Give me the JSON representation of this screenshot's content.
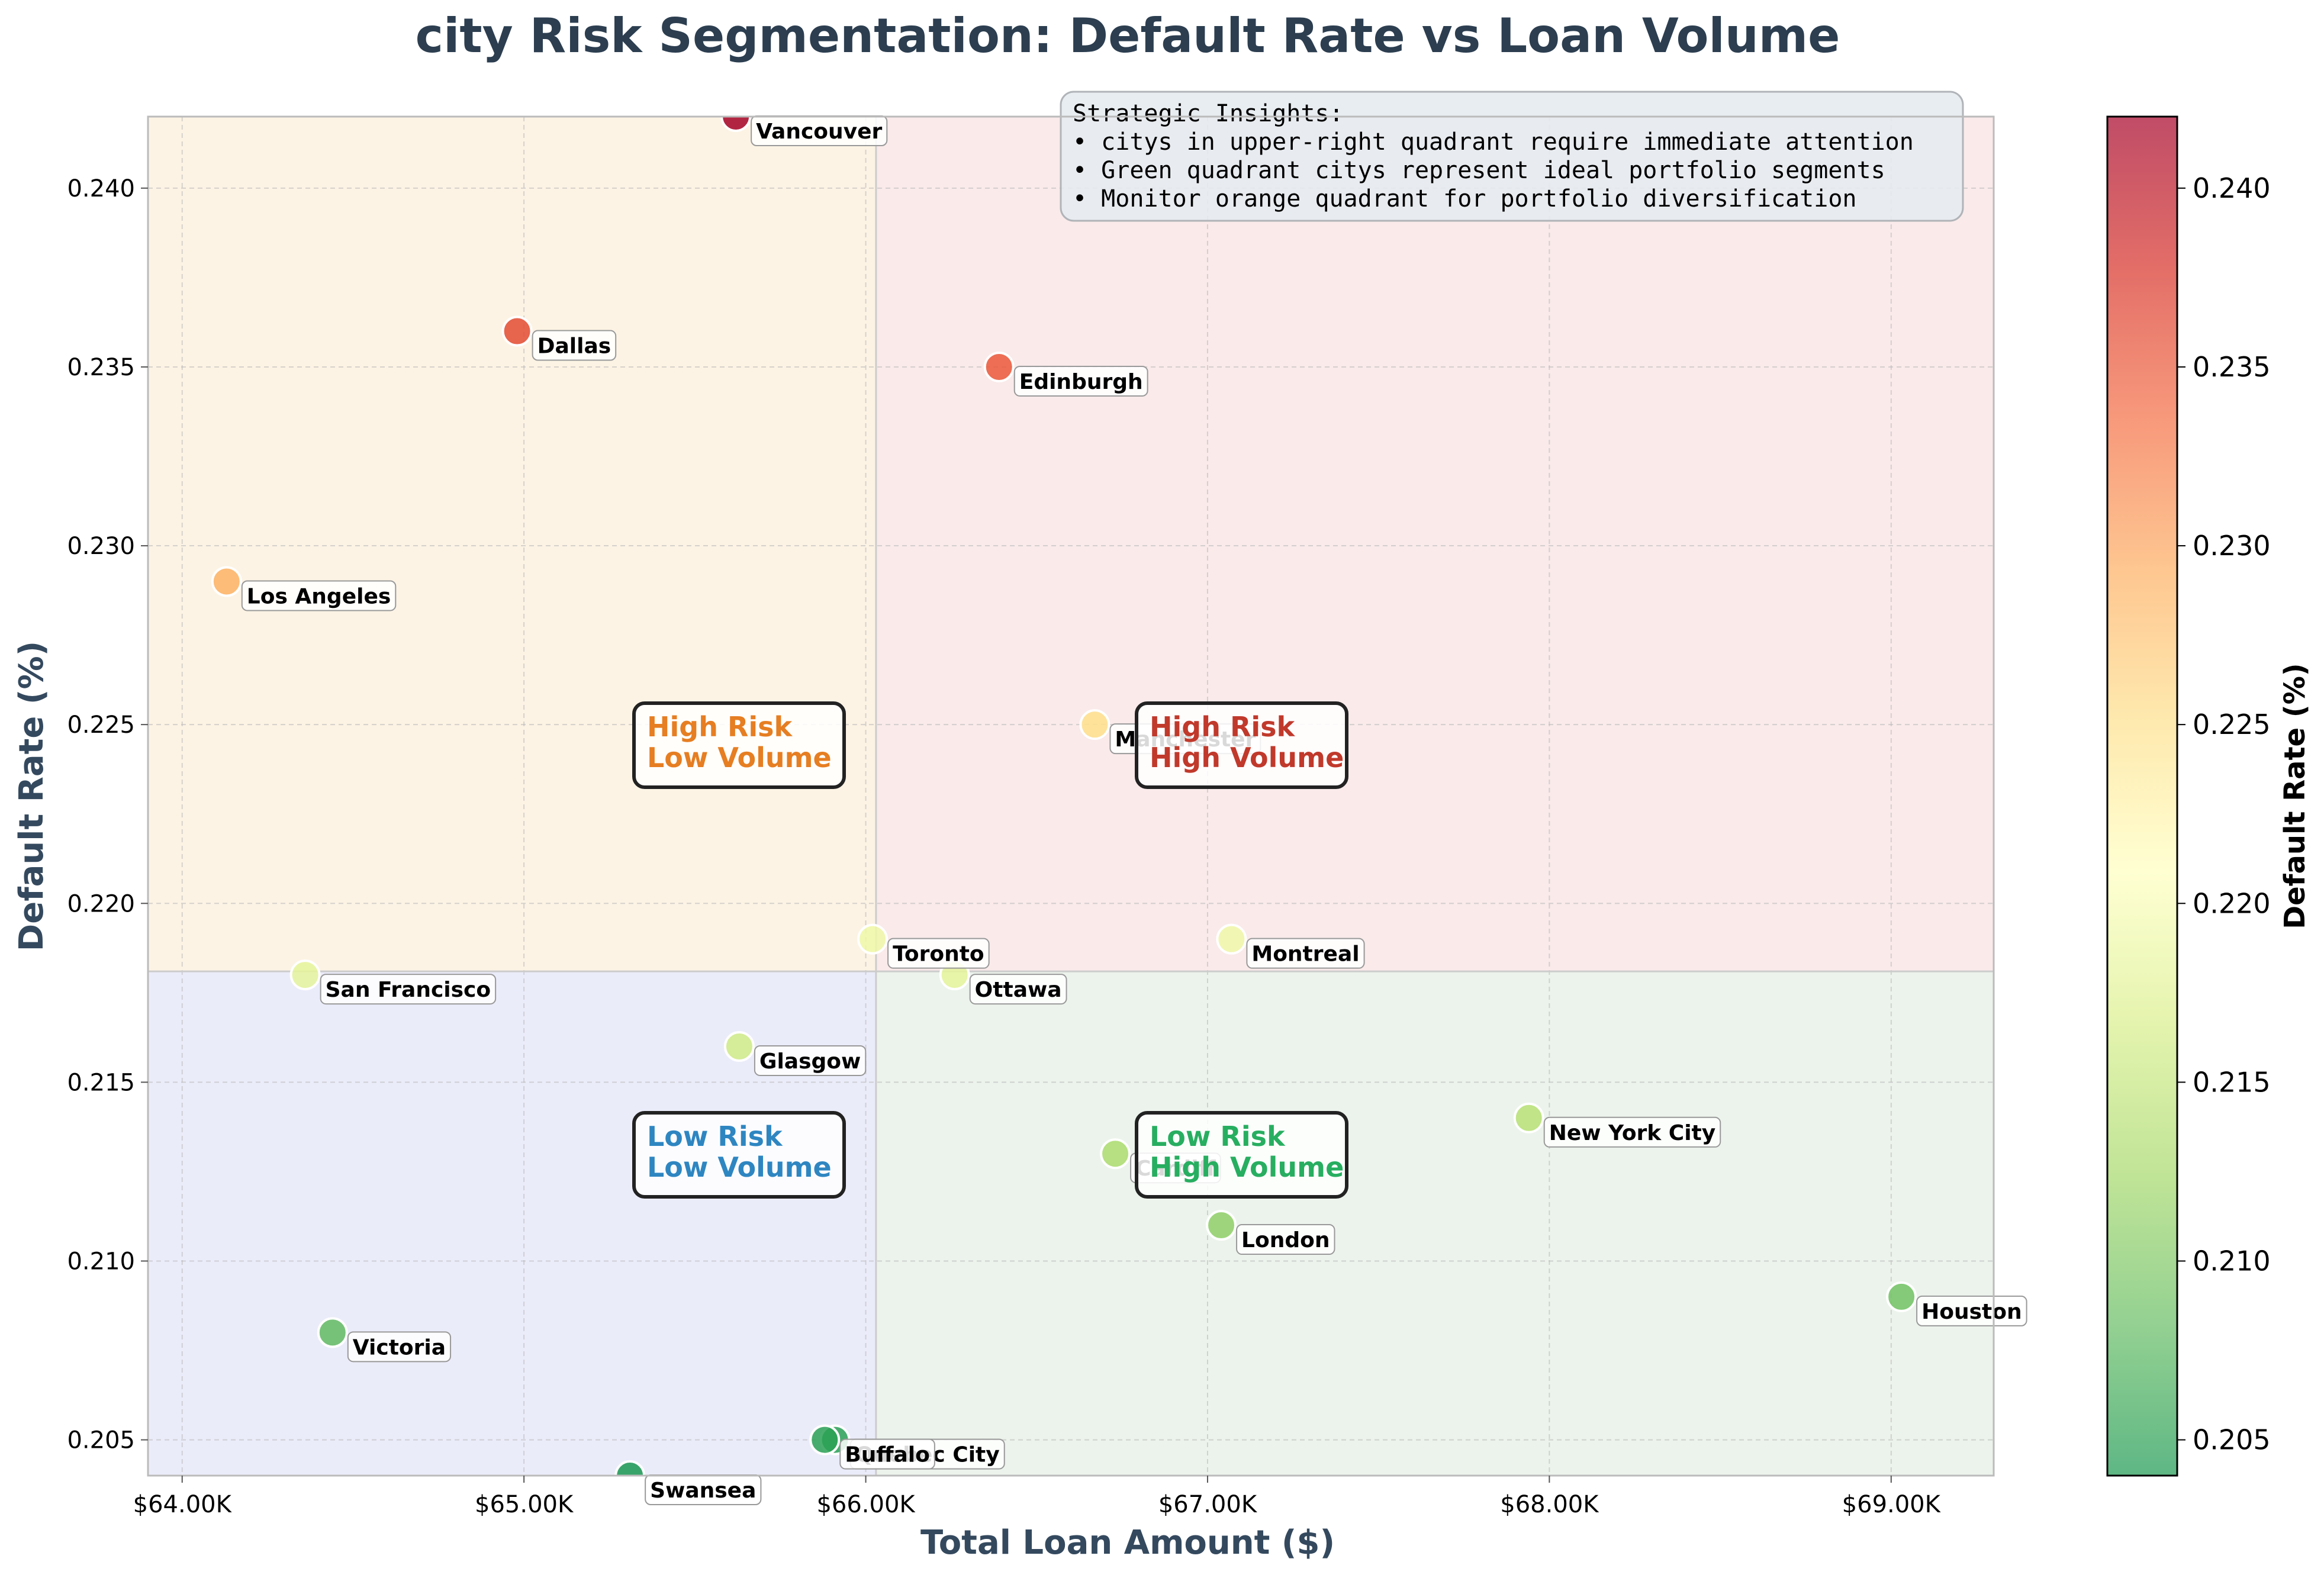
{
  "chart_data": {
    "type": "scatter",
    "title": "city Risk Segmentation: Default Rate vs Loan Volume",
    "xlabel": "Total Loan Amount ($)",
    "ylabel": "Default Rate (%)",
    "colorbar_label": "Default Rate (%)",
    "xlim": [
      63900,
      69300
    ],
    "ylim": [
      0.204,
      0.242
    ],
    "x_ticks": [
      64000,
      65000,
      66000,
      67000,
      68000,
      69000
    ],
    "x_tick_labels": [
      "$64.00K",
      "$65.00K",
      "$66.00K",
      "$67.00K",
      "$68.00K",
      "$69.00K"
    ],
    "y_ticks": [
      0.205,
      0.21,
      0.215,
      0.22,
      0.225,
      0.23,
      0.235,
      0.24
    ],
    "y_tick_labels": [
      "0.205",
      "0.210",
      "0.215",
      "0.220",
      "0.225",
      "0.230",
      "0.235",
      "0.240"
    ],
    "colorbar_ticks": [
      "0.205",
      "0.210",
      "0.215",
      "0.220",
      "0.225",
      "0.230",
      "0.235",
      "0.240"
    ],
    "colorbar_range": [
      0.204,
      0.242
    ],
    "colormap": [
      "#1a9850",
      "#66bd63",
      "#a6d96a",
      "#d9ef8b",
      "#ffffbf",
      "#fee08b",
      "#fdae61",
      "#f46d43",
      "#d73027",
      "#a50026"
    ],
    "x_split": 66030,
    "y_split": 0.2181,
    "grid": true,
    "points": [
      {
        "city": "Vancouver",
        "x": 65620,
        "y": 0.242
      },
      {
        "city": "Dallas",
        "x": 64980,
        "y": 0.236
      },
      {
        "city": "Edinburgh",
        "x": 66390,
        "y": 0.235
      },
      {
        "city": "Los Angeles",
        "x": 64130,
        "y": 0.229
      },
      {
        "city": "Manchester",
        "x": 66670,
        "y": 0.225
      },
      {
        "city": "Toronto",
        "x": 66020,
        "y": 0.219
      },
      {
        "city": "Montreal",
        "x": 67070,
        "y": 0.219
      },
      {
        "city": "San Francisco",
        "x": 64360,
        "y": 0.218
      },
      {
        "city": "Ottawa",
        "x": 66260,
        "y": 0.218
      },
      {
        "city": "Glasgow",
        "x": 65630,
        "y": 0.216
      },
      {
        "city": "New York City",
        "x": 67940,
        "y": 0.214
      },
      {
        "city": "Cardiff",
        "x": 66730,
        "y": 0.213
      },
      {
        "city": "London",
        "x": 67040,
        "y": 0.211
      },
      {
        "city": "Houston",
        "x": 69030,
        "y": 0.209
      },
      {
        "city": "Victoria",
        "x": 64440,
        "y": 0.208
      },
      {
        "city": "Quebec City",
        "x": 65910,
        "y": 0.205
      },
      {
        "city": "Buffalo",
        "x": 65880,
        "y": 0.205
      },
      {
        "city": "Swansea",
        "x": 65310,
        "y": 0.204
      }
    ],
    "quadrants": [
      {
        "line1": "High Risk",
        "line2": "Low Volume",
        "color": "#e67e22",
        "fill": "#f5deb3"
      },
      {
        "line1": "High Risk",
        "line2": "High Volume",
        "color": "#c0392b",
        "fill": "#f2c4c4"
      },
      {
        "line1": "Low Risk",
        "line2": "Low Volume",
        "color": "#2e86c1",
        "fill": "#c5c8f0"
      },
      {
        "line1": "Low Risk",
        "line2": "High Volume",
        "color": "#27ae60",
        "fill": "#c8dcc8"
      }
    ],
    "insights": [
      "Strategic Insights:",
      "• citys in upper-right quadrant require immediate attention",
      "• Green quadrant citys represent ideal portfolio segments",
      "• Monitor orange quadrant for portfolio diversification"
    ]
  }
}
